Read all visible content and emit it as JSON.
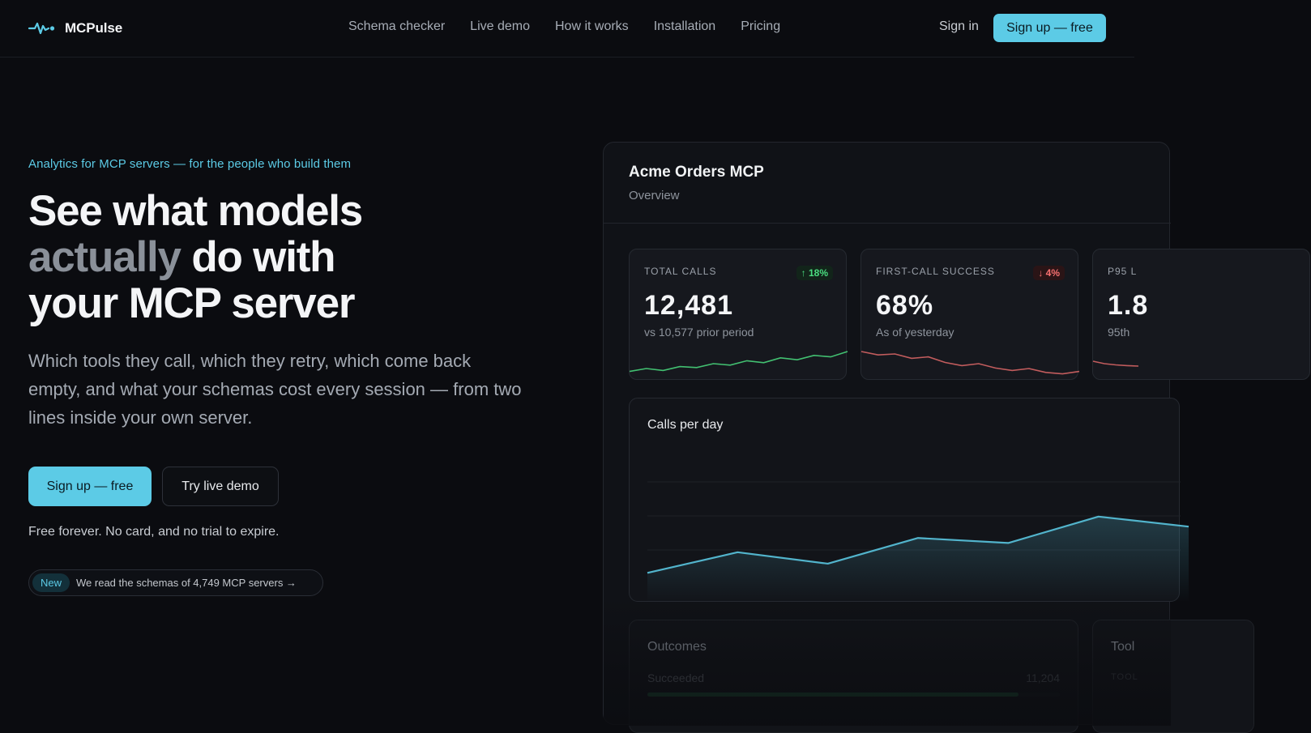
{
  "brand": {
    "name": "MCPulse",
    "logo_icon": "pulse-wave-icon",
    "accent": "#5ccbe6"
  },
  "nav": {
    "links": [
      "Schema checker",
      "Live demo",
      "How it works",
      "Installation",
      "Pricing"
    ],
    "sign_in": "Sign in",
    "sign_up": "Sign up — free"
  },
  "hero": {
    "eyebrow": "Analytics for MCP servers — for the people who build them",
    "headline_1": "See what models",
    "headline_muted": "actually",
    "headline_2": "do with",
    "headline_3": "your MCP server",
    "lede": "Which tools they call, which they retry, which come back empty, and what your schemas cost every session — from two lines inside your own server.",
    "cta_primary": "Sign up — free",
    "cta_secondary": "Try live demo",
    "fineprint": "Free forever. No card, and no trial to expire.",
    "news_tag": "New",
    "news_text": "We read the schemas of 4,749 MCP servers →"
  },
  "dashboard": {
    "title": "Acme Orders MCP",
    "subtitle": "Overview",
    "kpis": [
      {
        "label": "TOTAL CALLS",
        "delta": "↑ 18%",
        "trend": "up",
        "value": "12,481",
        "note": "vs 10,577 prior period",
        "color": "#4ade80",
        "spark": [
          0.18,
          0.3,
          0.22,
          0.38,
          0.34,
          0.5,
          0.44,
          0.62,
          0.54,
          0.74,
          0.66,
          0.84,
          0.78,
          1.0
        ]
      },
      {
        "label": "FIRST-CALL SUCCESS",
        "delta": "↓ 4%",
        "trend": "down",
        "value": "68%",
        "note": "As of yesterday",
        "color": "#e06868",
        "spark": [
          1.0,
          0.86,
          0.9,
          0.72,
          0.78,
          0.55,
          0.42,
          0.5,
          0.32,
          0.22,
          0.3,
          0.14,
          0.08,
          0.18
        ]
      },
      {
        "label": "P95 L",
        "delta": "",
        "trend": "",
        "value": "1.8",
        "note": "95th",
        "color": "#e06868",
        "spark": [
          0.6,
          0.5,
          0.45,
          0.42,
          0.4
        ]
      }
    ],
    "calls_chart": {
      "title": "Calls per day",
      "series": [
        0.03,
        0.32,
        0.16,
        0.52,
        0.45,
        0.82,
        0.68
      ]
    },
    "outcomes": {
      "title": "Outcomes",
      "row_label": "Succeeded",
      "row_value": "11,204",
      "row_fraction": 0.9
    },
    "tools": {
      "title": "Tool",
      "sub": "TOOL"
    }
  }
}
